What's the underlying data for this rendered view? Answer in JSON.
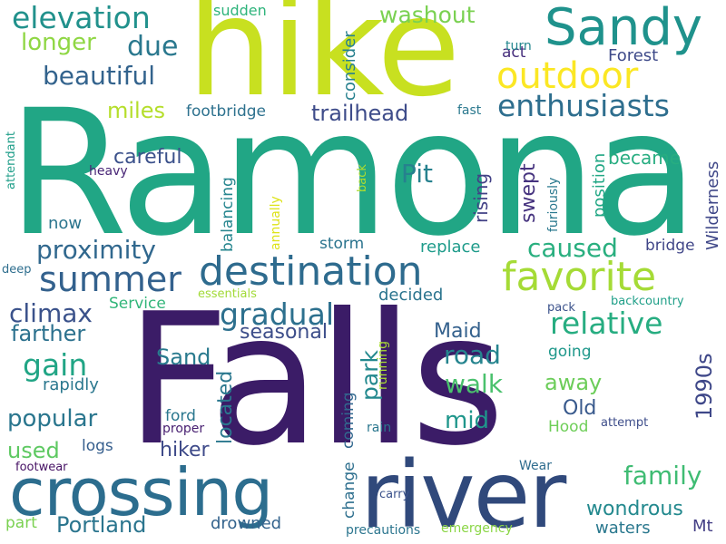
{
  "words": [
    {
      "text": "Ramona",
      "color": "#21a685",
      "vertical": false
    },
    {
      "text": "Falls",
      "color": "#3b1c67",
      "vertical": false
    },
    {
      "text": "hike",
      "color": "#c8e020",
      "vertical": false
    },
    {
      "text": "river",
      "color": "#30497b",
      "vertical": false
    },
    {
      "text": "crossing",
      "color": "#2c6d8e",
      "vertical": false
    },
    {
      "text": "Sandy",
      "color": "#1f928c",
      "vertical": false
    },
    {
      "text": "destination",
      "color": "#2e6b8e",
      "vertical": false
    },
    {
      "text": "favorite",
      "color": "#a5db36",
      "vertical": false
    },
    {
      "text": "outdoor",
      "color": "#fbe724",
      "vertical": false
    },
    {
      "text": "summer",
      "color": "#33618d",
      "vertical": false
    },
    {
      "text": "enthusiasts",
      "color": "#2e6e8e",
      "vertical": false
    },
    {
      "text": "elevation",
      "color": "#21918c",
      "vertical": false
    },
    {
      "text": "gradual",
      "color": "#2d708e",
      "vertical": false
    },
    {
      "text": "relative",
      "color": "#27ad81",
      "vertical": false
    },
    {
      "text": "proximity",
      "color": "#31688e",
      "vertical": false
    },
    {
      "text": "climax",
      "color": "#3b528b",
      "vertical": false
    },
    {
      "text": "gain",
      "color": "#21a585",
      "vertical": false
    },
    {
      "text": "caused",
      "color": "#29af7f",
      "vertical": false
    },
    {
      "text": "washout",
      "color": "#7ad151",
      "vertical": false
    },
    {
      "text": "longer",
      "color": "#8fd744",
      "vertical": false
    },
    {
      "text": "due",
      "color": "#2a788e",
      "vertical": false
    },
    {
      "text": "beautiful",
      "color": "#33638d",
      "vertical": false
    },
    {
      "text": "trailhead",
      "color": "#3e4c8a",
      "vertical": false
    },
    {
      "text": "miles",
      "color": "#b5de2b",
      "vertical": false
    },
    {
      "text": "footbridge",
      "color": "#2d718e",
      "vertical": false
    },
    {
      "text": "Forest",
      "color": "#3e4a89",
      "vertical": false
    },
    {
      "text": "act",
      "color": "#472f7d",
      "vertical": false
    },
    {
      "text": "turn",
      "color": "#24878e",
      "vertical": false
    },
    {
      "text": "sudden",
      "color": "#2fb47c",
      "vertical": false
    },
    {
      "text": "consider",
      "color": "#27808e",
      "vertical": true
    },
    {
      "text": "careful",
      "color": "#3b518b",
      "vertical": false
    },
    {
      "text": "heavy",
      "color": "#482576",
      "vertical": false
    },
    {
      "text": "attendant",
      "color": "#1f9e89",
      "vertical": true
    },
    {
      "text": "Pit",
      "color": "#26818e",
      "vertical": false
    },
    {
      "text": "back",
      "color": "#addc30",
      "vertical": true
    },
    {
      "text": "fast",
      "color": "#2a788e",
      "vertical": false
    },
    {
      "text": "became",
      "color": "#27ad81",
      "vertical": false
    },
    {
      "text": "Wilderness",
      "color": "#3f4788",
      "vertical": true
    },
    {
      "text": "position",
      "color": "#22a785",
      "vertical": true
    },
    {
      "text": "swept",
      "color": "#46337f",
      "vertical": true
    },
    {
      "text": "furiously",
      "color": "#2a788e",
      "vertical": true
    },
    {
      "text": "rising",
      "color": "#424186",
      "vertical": true
    },
    {
      "text": "annually",
      "color": "#dde318",
      "vertical": true
    },
    {
      "text": "balancing",
      "color": "#25858e",
      "vertical": true
    },
    {
      "text": "located",
      "color": "#2a778e",
      "vertical": true
    },
    {
      "text": "now",
      "color": "#2b758e",
      "vertical": false
    },
    {
      "text": "storm",
      "color": "#2b748e",
      "vertical": false
    },
    {
      "text": "replace",
      "color": "#1e9b8a",
      "vertical": false
    },
    {
      "text": "bridge",
      "color": "#404688",
      "vertical": false
    },
    {
      "text": "deep",
      "color": "#2e6e8e",
      "vertical": false
    },
    {
      "text": "essentials",
      "color": "#a2da37",
      "vertical": false
    },
    {
      "text": "Service",
      "color": "#32b67a",
      "vertical": false
    },
    {
      "text": "decided",
      "color": "#2b748e",
      "vertical": false
    },
    {
      "text": "backcountry",
      "color": "#1f9f88",
      "vertical": false
    },
    {
      "text": "pack",
      "color": "#3b528b",
      "vertical": false
    },
    {
      "text": "going",
      "color": "#1f988b",
      "vertical": false
    },
    {
      "text": "farther",
      "color": "#2c718e",
      "vertical": false
    },
    {
      "text": "seasonal",
      "color": "#3d4e8a",
      "vertical": false
    },
    {
      "text": "Maid",
      "color": "#34618d",
      "vertical": false
    },
    {
      "text": "road",
      "color": "#25848e",
      "vertical": false
    },
    {
      "text": "park",
      "color": "#23898e",
      "vertical": true
    },
    {
      "text": "Sand",
      "color": "#297a8e",
      "vertical": false
    },
    {
      "text": "walk",
      "color": "#4ac16d",
      "vertical": false
    },
    {
      "text": "rapidly",
      "color": "#2a778e",
      "vertical": false
    },
    {
      "text": "away",
      "color": "#6ccd5a",
      "vertical": false
    },
    {
      "text": "1990s",
      "color": "#3f4889",
      "vertical": true
    },
    {
      "text": "running",
      "color": "#a8db34",
      "vertical": true
    },
    {
      "text": "Old",
      "color": "#38598c",
      "vertical": false
    },
    {
      "text": "popular",
      "color": "#2a768e",
      "vertical": false
    },
    {
      "text": "mid",
      "color": "#1f968b",
      "vertical": false
    },
    {
      "text": "ford",
      "color": "#2a778e",
      "vertical": false
    },
    {
      "text": "Hood",
      "color": "#6ece58",
      "vertical": false
    },
    {
      "text": "proper",
      "color": "#482071",
      "vertical": false
    },
    {
      "text": "coming",
      "color": "#31678e",
      "vertical": true
    },
    {
      "text": "rain",
      "color": "#2a778e",
      "vertical": false
    },
    {
      "text": "attempt",
      "color": "#3d4d8a",
      "vertical": false
    },
    {
      "text": "hiker",
      "color": "#3e4a89",
      "vertical": false
    },
    {
      "text": "logs",
      "color": "#355e8d",
      "vertical": false
    },
    {
      "text": "used",
      "color": "#5ec962",
      "vertical": false
    },
    {
      "text": "family",
      "color": "#3fbc73",
      "vertical": false
    },
    {
      "text": "change",
      "color": "#2e6f8e",
      "vertical": true
    },
    {
      "text": "Wear",
      "color": "#2f6c8e",
      "vertical": false
    },
    {
      "text": "footwear",
      "color": "#471365",
      "vertical": false
    },
    {
      "text": "carry",
      "color": "#3b528b",
      "vertical": false
    },
    {
      "text": "wondrous",
      "color": "#23898e",
      "vertical": false
    },
    {
      "text": "Portland",
      "color": "#2b758e",
      "vertical": false
    },
    {
      "text": "Mt",
      "color": "#433e85",
      "vertical": false
    },
    {
      "text": "waters",
      "color": "#2a788e",
      "vertical": false
    },
    {
      "text": "drowned",
      "color": "#33638d",
      "vertical": false
    },
    {
      "text": "part",
      "color": "#7ad151",
      "vertical": false
    },
    {
      "text": "precautions",
      "color": "#2b758e",
      "vertical": false
    },
    {
      "text": "emergency",
      "color": "#8bd646",
      "vertical": false
    }
  ]
}
